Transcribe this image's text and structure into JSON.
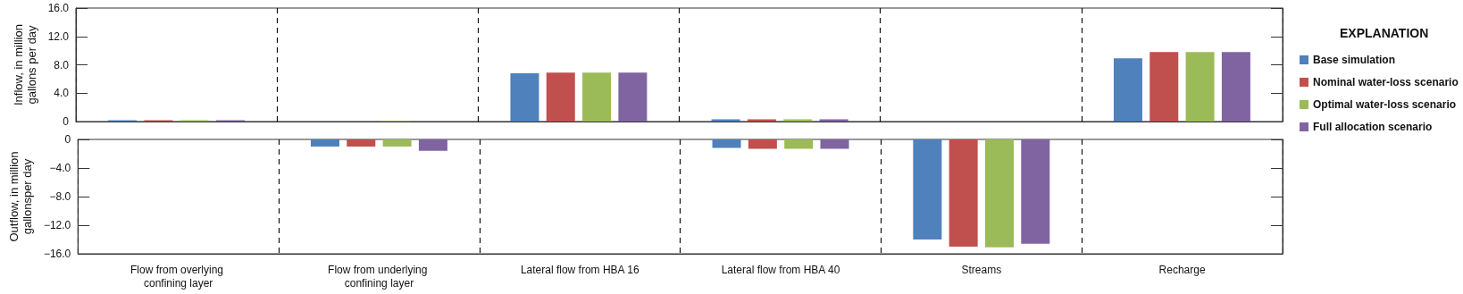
{
  "chart_data": [
    {
      "type": "bar",
      "ylabel": "Inflow, in million gallons per day",
      "legend_title": "EXPLANATION",
      "legend": "right",
      "grid": "x",
      "tick_labels": "y",
      "categories": [
        "Flow from overlying confining layer",
        "Flow from underlying confining layer",
        "Lateral flow from HBA 16",
        "Lateral flow from HBA 40",
        "Streams",
        "Recharge"
      ],
      "ylim": [
        0,
        16
      ],
      "yticks": [
        0,
        {
          "value": 4,
          "label": "4.0"
        },
        {
          "value": 8,
          "label": "8.0"
        },
        {
          "value": 12,
          "label": "12.0"
        },
        {
          "value": 16,
          "label": "16.0"
        }
      ],
      "series": [
        {
          "name": "Base simulation",
          "color": "#4f81bd",
          "values": [
            0.2,
            0,
            6.8,
            0.3,
            0,
            8.9
          ]
        },
        {
          "name": "Nominal water-loss scenario",
          "color": "#c0504d",
          "values": [
            0.2,
            0,
            6.9,
            0.3,
            0,
            9.8
          ]
        },
        {
          "name": "Optimal water-loss scenario",
          "color": "#9bbb59",
          "values": [
            0.2,
            0.1,
            6.9,
            0.3,
            0,
            9.8
          ]
        },
        {
          "name": "Full allocation scenario",
          "color": "#8064a2",
          "values": [
            0.2,
            0,
            6.9,
            0.3,
            0,
            9.8
          ]
        }
      ]
    },
    {
      "type": "bar",
      "ylabel": "Outflow, in million gallonsper day",
      "legend": false,
      "grid": "x",
      "categories": [
        "Flow from overlying confining layer",
        "Flow from underlying confining layer",
        "Lateral flow from HBA 16",
        "Lateral flow from HBA 40",
        "Streams",
        "Recharge"
      ],
      "ylim": [
        -16,
        0
      ],
      "yticks": [
        {
          "value": -16,
          "label": "−16.0"
        },
        {
          "value": -12,
          "label": "−12.0"
        },
        {
          "value": -8,
          "label": "−8.0"
        },
        {
          "value": -4,
          "label": "−4.0"
        },
        0
      ],
      "series": [
        {
          "color": "#4f81bd",
          "values": [
            0,
            -1.0,
            0,
            -1.2,
            -14.0,
            0
          ]
        },
        {
          "color": "#c0504d",
          "values": [
            0,
            -1.0,
            0,
            -1.3,
            -15.0,
            0
          ]
        },
        {
          "color": "#9bbb59",
          "values": [
            0,
            -1.0,
            0,
            -1.3,
            -15.1,
            0
          ]
        },
        {
          "color": "#8064a2",
          "values": [
            0,
            -1.6,
            0,
            -1.3,
            -14.6,
            0
          ]
        }
      ]
    }
  ]
}
